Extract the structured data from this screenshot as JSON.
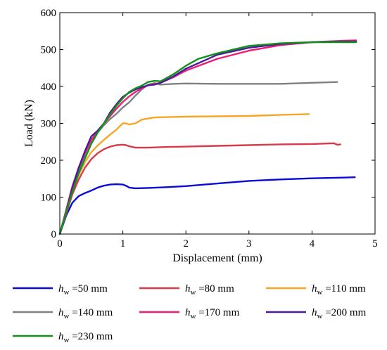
{
  "chart_data": {
    "type": "line",
    "title": "",
    "xlabel": "Displacement (mm)",
    "ylabel": "Load (kN)",
    "xlim": [
      0,
      5
    ],
    "ylim": [
      0,
      600
    ],
    "xticks": [
      "0",
      "1",
      "2",
      "3",
      "4",
      "5"
    ],
    "yticks": [
      "0",
      "100",
      "200",
      "300",
      "400",
      "500",
      "600"
    ],
    "grid": false,
    "legend_position": "bottom",
    "series": [
      {
        "name": "hw=50 mm",
        "symbol": "h",
        "subscript": "w",
        "rest": " =50 mm",
        "color": "#0a0ad6",
        "x": [
          0,
          0.1,
          0.2,
          0.3,
          0.4,
          0.5,
          0.6,
          0.7,
          0.8,
          0.9,
          1.0,
          1.05,
          1.1,
          1.2,
          1.4,
          1.7,
          2.0,
          2.5,
          3.0,
          3.5,
          4.0,
          4.5,
          4.68
        ],
        "y": [
          0,
          50,
          85,
          103,
          111,
          118,
          126,
          131,
          134,
          135,
          134,
          131,
          126,
          124,
          125,
          127,
          130,
          137,
          144,
          148,
          151,
          153,
          154
        ]
      },
      {
        "name": "hw=80 mm",
        "symbol": "h",
        "subscript": "w",
        "rest": " =80 mm",
        "color": "#d83a4a",
        "x": [
          0,
          0.1,
          0.2,
          0.3,
          0.4,
          0.5,
          0.6,
          0.7,
          0.8,
          0.9,
          1.0,
          1.05,
          1.1,
          1.2,
          1.4,
          1.7,
          2.0,
          2.5,
          3.0,
          3.5,
          4.0,
          4.35,
          4.4,
          4.45
        ],
        "y": [
          0,
          55,
          108,
          148,
          180,
          203,
          219,
          230,
          237,
          241,
          242,
          241,
          238,
          234,
          234,
          236,
          237,
          239,
          241,
          243,
          244,
          246,
          242,
          243
        ]
      },
      {
        "name": "hw=110 mm",
        "symbol": "h",
        "subscript": "w",
        "rest": " =110 mm",
        "color": "#f9a528",
        "x": [
          0,
          0.1,
          0.2,
          0.3,
          0.4,
          0.5,
          0.6,
          0.7,
          0.8,
          0.9,
          0.95,
          1.0,
          1.05,
          1.1,
          1.2,
          1.3,
          1.5,
          2.0,
          2.5,
          3.0,
          3.5,
          3.95
        ],
        "y": [
          0,
          60,
          120,
          160,
          195,
          222,
          240,
          255,
          270,
          283,
          292,
          300,
          300,
          297,
          300,
          310,
          316,
          318,
          319,
          320,
          323,
          325
        ]
      },
      {
        "name": "hw=140 mm",
        "symbol": "h",
        "subscript": "w",
        "rest": " =140 mm",
        "color": "#808080",
        "x": [
          0,
          0.1,
          0.2,
          0.3,
          0.4,
          0.5,
          0.6,
          0.7,
          0.8,
          0.9,
          1.0,
          1.1,
          1.2,
          1.3,
          1.4,
          1.5,
          1.6,
          1.8,
          2.0,
          2.5,
          3.0,
          3.5,
          4.0,
          4.4
        ],
        "y": [
          0,
          60,
          120,
          170,
          210,
          245,
          275,
          295,
          312,
          326,
          343,
          357,
          375,
          392,
          405,
          409,
          405,
          407,
          408,
          407,
          407,
          407,
          410,
          412
        ]
      },
      {
        "name": "hw=170 mm",
        "symbol": "h",
        "subscript": "w",
        "rest": " =170 mm",
        "color": "#f01d78",
        "x": [
          0,
          0.1,
          0.2,
          0.3,
          0.4,
          0.5,
          0.6,
          0.7,
          0.8,
          0.9,
          1.0,
          1.1,
          1.2,
          1.3,
          1.4,
          1.6,
          1.8,
          2.0,
          2.5,
          3.0,
          3.5,
          4.0,
          4.5,
          4.7
        ],
        "y": [
          0,
          65,
          130,
          180,
          220,
          255,
          280,
          300,
          320,
          340,
          358,
          373,
          385,
          395,
          403,
          410,
          425,
          443,
          475,
          497,
          512,
          520,
          524,
          525
        ]
      },
      {
        "name": "hw=200 mm",
        "symbol": "h",
        "subscript": "w",
        "rest": " =200 mm",
        "color": "#4a1a9c",
        "x": [
          0,
          0.1,
          0.2,
          0.3,
          0.4,
          0.5,
          0.6,
          0.7,
          0.8,
          0.9,
          1.0,
          1.1,
          1.2,
          1.3,
          1.4,
          1.5,
          1.6,
          1.8,
          2.0,
          2.5,
          3.0,
          3.5,
          4.0,
          4.5,
          4.7
        ],
        "y": [
          0,
          60,
          125,
          180,
          225,
          265,
          280,
          300,
          330,
          352,
          372,
          383,
          392,
          398,
          403,
          405,
          410,
          427,
          448,
          486,
          505,
          515,
          520,
          522,
          522
        ]
      },
      {
        "name": "hw=230 mm",
        "symbol": "h",
        "subscript": "w",
        "rest": " =230 mm",
        "color": "#12921a",
        "x": [
          0,
          0.1,
          0.2,
          0.3,
          0.4,
          0.5,
          0.6,
          0.7,
          0.8,
          0.9,
          1.0,
          1.1,
          1.2,
          1.3,
          1.4,
          1.5,
          1.6,
          1.8,
          2.0,
          2.2,
          2.5,
          3.0,
          3.5,
          4.0,
          4.5,
          4.7
        ],
        "y": [
          0,
          60,
          115,
          165,
          205,
          245,
          275,
          300,
          325,
          348,
          368,
          385,
          395,
          402,
          412,
          415,
          414,
          433,
          456,
          475,
          490,
          510,
          517,
          520,
          520,
          520
        ]
      }
    ]
  }
}
